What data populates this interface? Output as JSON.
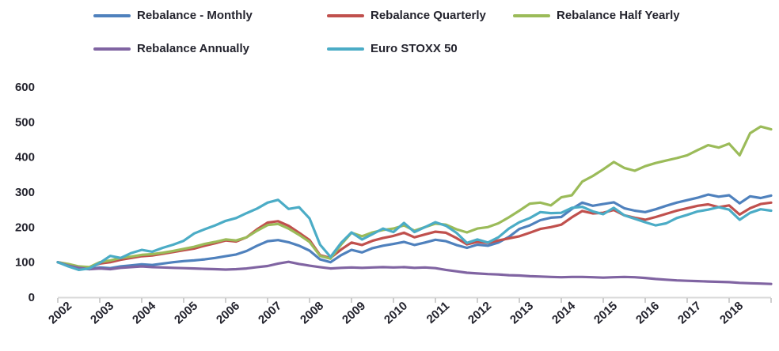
{
  "chart_data": {
    "type": "line",
    "title": "",
    "xlabel": "",
    "ylabel": "",
    "ylim": [
      0,
      600
    ],
    "y_ticks": [
      0,
      100,
      200,
      300,
      400,
      500,
      600
    ],
    "x_tick_labels": [
      "2002",
      "2003",
      "2004",
      "2005",
      "2006",
      "2007",
      "2008",
      "2009",
      "2010",
      "2011",
      "2012",
      "2013",
      "2014",
      "2015",
      "2016",
      "2017",
      "2018"
    ],
    "grid": false,
    "legend_position": "top",
    "x": [
      2002,
      2002.25,
      2002.5,
      2002.75,
      2003,
      2003.25,
      2003.5,
      2003.75,
      2004,
      2004.25,
      2004.5,
      2004.75,
      2005,
      2005.25,
      2005.5,
      2005.75,
      2006,
      2006.25,
      2006.5,
      2006.75,
      2007,
      2007.25,
      2007.5,
      2007.75,
      2008,
      2008.25,
      2008.5,
      2008.75,
      2009,
      2009.25,
      2009.5,
      2009.75,
      2010,
      2010.25,
      2010.5,
      2010.75,
      2011,
      2011.25,
      2011.5,
      2011.75,
      2012,
      2012.25,
      2012.5,
      2012.75,
      2013,
      2013.25,
      2013.5,
      2013.75,
      2014,
      2014.25,
      2014.5,
      2014.75,
      2015,
      2015.25,
      2015.5,
      2015.75,
      2016,
      2016.25,
      2016.5,
      2016.75,
      2017,
      2017.25,
      2017.5,
      2017.75,
      2018,
      2018.25,
      2018.5,
      2018.75,
      2019
    ],
    "series": [
      {
        "name": "Rebalance - Monthly",
        "color": "#4F81BD",
        "values": [
          100,
          90,
          84,
          80,
          85,
          83,
          88,
          91,
          94,
          92,
          96,
          100,
          103,
          105,
          108,
          112,
          117,
          122,
          132,
          147,
          160,
          163,
          157,
          147,
          133,
          108,
          100,
          120,
          135,
          128,
          140,
          147,
          152,
          158,
          149,
          156,
          164,
          160,
          149,
          141,
          150,
          147,
          156,
          172,
          195,
          205,
          220,
          227,
          229,
          252,
          270,
          261,
          266,
          271,
          254,
          247,
          243,
          251,
          261,
          270,
          277,
          284,
          293,
          287,
          291,
          268,
          288,
          283,
          290
        ]
      },
      {
        "name": "Rebalance Quarterly",
        "color": "#C0504D",
        "values": [
          100,
          94,
          87,
          84,
          96,
          100,
          107,
          112,
          117,
          119,
          124,
          129,
          134,
          139,
          147,
          154,
          162,
          159,
          171,
          194,
          213,
          217,
          204,
          184,
          163,
          120,
          112,
          136,
          156,
          149,
          161,
          169,
          175,
          184,
          171,
          179,
          187,
          184,
          169,
          151,
          158,
          155,
          162,
          168,
          174,
          184,
          195,
          200,
          207,
          228,
          246,
          239,
          241,
          249,
          234,
          227,
          221,
          229,
          238,
          247,
          254,
          261,
          265,
          257,
          262,
          236,
          254,
          266,
          270
        ]
      },
      {
        "name": "Rebalance Half Yearly",
        "color": "#9BBB59",
        "values": [
          100,
          95,
          88,
          86,
          100,
          105,
          112,
          116,
          121,
          123,
          127,
          132,
          138,
          144,
          152,
          158,
          165,
          162,
          171,
          190,
          206,
          209,
          196,
          178,
          158,
          118,
          110,
          150,
          184,
          174,
          185,
          192,
          196,
          205,
          190,
          200,
          210,
          207,
          194,
          185,
          196,
          200,
          211,
          228,
          247,
          267,
          270,
          262,
          285,
          291,
          330,
          346,
          365,
          386,
          369,
          361,
          374,
          383,
          390,
          397,
          405,
          420,
          434,
          427,
          438,
          405,
          468,
          487,
          479
        ]
      },
      {
        "name": "Rebalance Annually",
        "color": "#8064A2",
        "values": [
          100,
          90,
          84,
          80,
          82,
          80,
          84,
          86,
          88,
          86,
          85,
          84,
          83,
          82,
          81,
          80,
          79,
          80,
          82,
          86,
          89,
          96,
          101,
          95,
          90,
          86,
          82,
          84,
          85,
          84,
          85,
          86,
          85,
          86,
          84,
          85,
          83,
          78,
          74,
          70,
          68,
          66,
          65,
          63,
          62,
          60,
          59,
          58,
          57,
          58,
          58,
          57,
          56,
          57,
          58,
          57,
          55,
          52,
          50,
          48,
          47,
          46,
          45,
          44,
          43,
          41,
          40,
          39,
          38
        ]
      },
      {
        "name": "Euro STOXX 50",
        "color": "#4BACC6",
        "values": [
          100,
          88,
          78,
          82,
          98,
          118,
          112,
          126,
          135,
          130,
          141,
          150,
          161,
          182,
          194,
          205,
          218,
          226,
          240,
          253,
          270,
          278,
          252,
          257,
          225,
          150,
          115,
          155,
          185,
          165,
          180,
          196,
          186,
          212,
          186,
          200,
          214,
          204,
          184,
          155,
          165,
          156,
          171,
          196,
          214,
          226,
          243,
          240,
          241,
          255,
          258,
          245,
          237,
          255,
          234,
          224,
          214,
          205,
          211,
          226,
          235,
          245,
          250,
          257,
          250,
          221,
          241,
          251,
          247
        ]
      }
    ]
  },
  "colors": {
    "axis_line": "#D9D9D9",
    "tick_mark": "#BFBFBF",
    "label_text": "#24242e"
  }
}
